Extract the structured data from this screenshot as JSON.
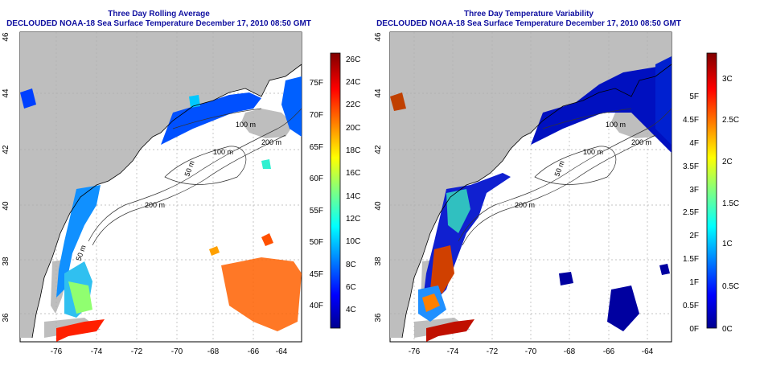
{
  "panels": [
    {
      "title": "Three Day Rolling Average",
      "subtitle": "DECLOUDED NOAA-18 Sea Surface Temperature December 17, 2010 08:50 GMT",
      "colorbar_c": [
        "4C",
        "6C",
        "8C",
        "10C",
        "12C",
        "14C",
        "16C",
        "18C",
        "20C",
        "22C",
        "24C",
        "26C"
      ],
      "colorbar_f": [
        "40F",
        "45F",
        "50F",
        "55F",
        "60F",
        "65F",
        "70F",
        "75F"
      ]
    },
    {
      "title": "Three Day Temperature Variability",
      "subtitle": "DECLOUDED NOAA-18 Sea Surface Temperature December 17, 2010 08:50 GMT",
      "colorbar_c": [
        "0C",
        "0.5C",
        "1C",
        "1.5C",
        "2C",
        "2.5C",
        "3C"
      ],
      "colorbar_f": [
        "0F",
        "0.5F",
        "1F",
        "1.5F",
        "2F",
        "2.5F",
        "3F",
        "3.5F",
        "4F",
        "4.5F",
        "5F"
      ]
    }
  ],
  "map": {
    "lon_ticks": [
      "-76",
      "-74",
      "-72",
      "-70",
      "-68",
      "-66",
      "-64"
    ],
    "lat_ticks": [
      "36",
      "38",
      "40",
      "42",
      "44",
      "46"
    ],
    "depth_labels": [
      "100 m",
      "200 m",
      "100 m",
      "50 m",
      "200 m",
      "50 m"
    ],
    "land_color": "#bebebe",
    "ocean_color": "#ffffff"
  },
  "colors": {
    "title": "#1010a0",
    "colormap": [
      "#00008f",
      "#0000ff",
      "#0080ff",
      "#00ffff",
      "#80ff80",
      "#ffff00",
      "#ff8000",
      "#ff0000",
      "#800000"
    ]
  }
}
